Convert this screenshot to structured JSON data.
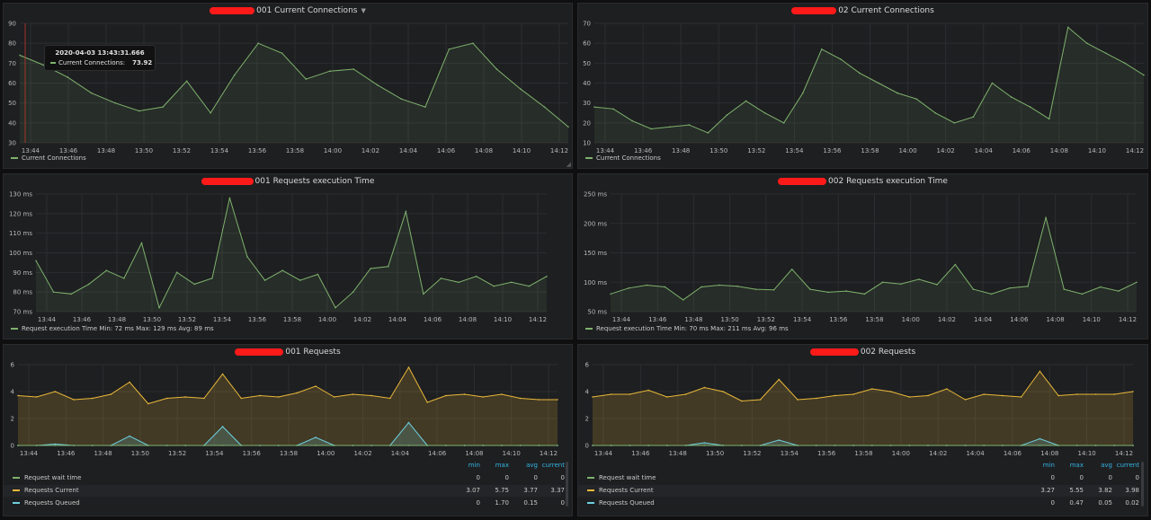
{
  "colors": {
    "green": "#7eb26d",
    "yellow": "#eab839",
    "cyan": "#6ed0e0",
    "grid": "#2c2d30",
    "blue": "#33b5e5"
  },
  "panels": [
    {
      "id": "p1",
      "title": "001 Current Connections",
      "has_caret": true,
      "chart_data": {
        "type": "line",
        "x": [
          "13:43",
          "13:44",
          "13:46",
          "13:48",
          "13:49",
          "13:50",
          "13:51",
          "13:52",
          "13:54",
          "13:55",
          "13:56",
          "13:58",
          "13:59",
          "14:00",
          "14:01",
          "14:02",
          "14:03",
          "14:04",
          "14:05",
          "14:06",
          "14:08",
          "14:10",
          "14:12",
          "14:13"
        ],
        "series": [
          {
            "name": "Current Connections",
            "color": "#7eb26d",
            "values": [
              74,
              69,
              63,
              55,
              50,
              46,
              48,
              61,
              45,
              64,
              80,
              75,
              62,
              66,
              67,
              59,
              52,
              48,
              77,
              80,
              67,
              57,
              48,
              38
            ]
          }
        ],
        "ylim": [
          30,
          90
        ],
        "yticks": [
          "30",
          "40",
          "50",
          "60",
          "70",
          "80",
          "90"
        ],
        "ysuffix": ""
      },
      "xticks": [
        "13:44",
        "13:46",
        "13:48",
        "13:50",
        "13:52",
        "13:54",
        "13:56",
        "13:58",
        "14:00",
        "14:02",
        "14:04",
        "14:06",
        "14:08",
        "14:10",
        "14:12"
      ],
      "legend": [
        {
          "label": "Current Connections",
          "color": "#7eb26d"
        }
      ],
      "tooltip": {
        "time": "2020-04-03 13:43:31.666",
        "label": "Current Connections:",
        "value": "73.92"
      }
    },
    {
      "id": "p2",
      "title": "02 Current Connections",
      "has_caret": false,
      "chart_data": {
        "type": "line",
        "series": [
          {
            "name": "Current Connections",
            "color": "#7eb26d",
            "values": [
              28,
              27,
              21,
              17,
              18,
              19,
              15,
              24,
              31,
              25,
              20,
              35,
              57,
              52,
              45,
              40,
              35,
              32,
              25,
              20,
              23,
              40,
              33,
              28,
              22,
              68,
              60,
              55,
              50,
              44
            ]
          }
        ],
        "ylim": [
          10,
          70
        ],
        "yticks": [
          "10",
          "20",
          "30",
          "40",
          "50",
          "60",
          "70"
        ],
        "ysuffix": ""
      },
      "xticks": [
        "13:44",
        "13:46",
        "13:48",
        "13:50",
        "13:52",
        "13:54",
        "13:56",
        "13:58",
        "14:00",
        "14:02",
        "14:04",
        "14:06",
        "14:08",
        "14:10",
        "14:12"
      ],
      "legend": [
        {
          "label": "Current Connections",
          "color": "#7eb26d"
        }
      ]
    },
    {
      "id": "p3",
      "title": "001 Requests execution Time",
      "has_caret": false,
      "chart_data": {
        "type": "line",
        "series": [
          {
            "name": "Request execution Time",
            "color": "#7eb26d",
            "values": [
              96,
              80,
              79,
              84,
              91,
              87,
              105,
              72,
              90,
              84,
              87,
              128,
              98,
              86,
              91,
              86,
              89,
              72,
              80,
              92,
              93,
              121,
              79,
              87,
              85,
              88,
              83,
              85,
              83,
              88
            ]
          }
        ],
        "ylim": [
          70,
          130
        ],
        "yticks": [
          "70 ms",
          "80 ms",
          "90 ms",
          "100 ms",
          "110 ms",
          "120 ms",
          "130 ms"
        ],
        "ysuffix": " ms"
      },
      "xticks": [
        "13:44",
        "13:46",
        "13:48",
        "13:50",
        "13:52",
        "13:54",
        "13:56",
        "13:58",
        "14:00",
        "14:02",
        "14:04",
        "14:06",
        "14:08",
        "14:10",
        "14:12"
      ],
      "legend": [
        {
          "label": "Request execution Time  Min: 72 ms  Max: 129 ms  Avg: 89 ms",
          "color": "#7eb26d"
        }
      ]
    },
    {
      "id": "p4",
      "title": "002 Requests execution Time",
      "has_caret": false,
      "chart_data": {
        "type": "line",
        "series": [
          {
            "name": "Request execution Time",
            "color": "#7eb26d",
            "values": [
              80,
              90,
              95,
              92,
              70,
              92,
              95,
              93,
              88,
              87,
              122,
              88,
              83,
              85,
              80,
              100,
              97,
              105,
              96,
              130,
              88,
              80,
              90,
              93,
              210,
              88,
              80,
              92,
              85,
              100
            ]
          }
        ],
        "ylim": [
          50,
          250
        ],
        "yticks": [
          "50 ms",
          "100 ms",
          "150 ms",
          "200 ms",
          "250 ms"
        ],
        "ysuffix": " ms"
      },
      "xticks": [
        "13:44",
        "13:46",
        "13:48",
        "13:50",
        "13:52",
        "13:54",
        "13:56",
        "13:58",
        "14:00",
        "14:02",
        "14:04",
        "14:06",
        "14:08",
        "14:10",
        "14:12"
      ],
      "legend": [
        {
          "label": "Request execution Time  Min: 70 ms  Max: 211 ms  Avg: 96 ms",
          "color": "#7eb26d"
        }
      ]
    },
    {
      "id": "p5",
      "title": "001 Requests",
      "has_caret": false,
      "chart_data": {
        "type": "area",
        "series": [
          {
            "name": "Requests Current",
            "color": "#eab839",
            "values": [
              3.7,
              3.6,
              4.0,
              3.4,
              3.5,
              3.8,
              4.7,
              3.1,
              3.5,
              3.6,
              3.5,
              5.3,
              3.5,
              3.7,
              3.6,
              3.9,
              4.4,
              3.6,
              3.8,
              3.7,
              3.5,
              5.8,
              3.2,
              3.7,
              3.8,
              3.6,
              3.8,
              3.5,
              3.4,
              3.4
            ]
          },
          {
            "name": "Requests Queued",
            "color": "#6ed0e0",
            "values": [
              0,
              0,
              0.1,
              0,
              0,
              0,
              0.7,
              0,
              0,
              0,
              0,
              1.4,
              0,
              0,
              0,
              0,
              0.6,
              0,
              0,
              0,
              0,
              1.7,
              0,
              0,
              0,
              0,
              0,
              0,
              0,
              0
            ]
          },
          {
            "name": "Request wait time",
            "color": "#7eb26d",
            "values": [
              0,
              0,
              0,
              0,
              0,
              0,
              0,
              0,
              0,
              0,
              0,
              0,
              0,
              0,
              0,
              0,
              0,
              0,
              0,
              0,
              0,
              0,
              0,
              0,
              0,
              0,
              0,
              0,
              0,
              0
            ]
          }
        ],
        "ylim": [
          0,
          6
        ],
        "yticks": [
          "0",
          "2",
          "4",
          "6"
        ],
        "ysuffix": ""
      },
      "xticks": [
        "13:44",
        "13:46",
        "13:48",
        "13:50",
        "13:52",
        "13:54",
        "13:56",
        "13:58",
        "14:00",
        "14:02",
        "14:04",
        "14:06",
        "14:08",
        "14:10",
        "14:12"
      ],
      "table": {
        "headers": [
          "min",
          "max",
          "avg",
          "current"
        ],
        "rows": [
          {
            "label": "Request wait time",
            "color": "#7eb26d",
            "vals": [
              "0",
              "0",
              "0",
              "0"
            ]
          },
          {
            "label": "Requests Current",
            "color": "#eab839",
            "vals": [
              "3.07",
              "5.75",
              "3.77",
              "3.37"
            ]
          },
          {
            "label": "Requests Queued",
            "color": "#6ed0e0",
            "vals": [
              "0",
              "1.70",
              "0.15",
              "0"
            ]
          }
        ]
      }
    },
    {
      "id": "p6",
      "title": "002 Requests",
      "has_caret": false,
      "chart_data": {
        "type": "area",
        "series": [
          {
            "name": "Requests Current",
            "color": "#eab839",
            "values": [
              3.6,
              3.8,
              3.8,
              4.1,
              3.6,
              3.8,
              4.3,
              4.0,
              3.3,
              3.4,
              4.9,
              3.4,
              3.5,
              3.7,
              3.8,
              4.2,
              4.0,
              3.6,
              3.7,
              4.2,
              3.4,
              3.8,
              3.7,
              3.6,
              5.5,
              3.7,
              3.8,
              3.8,
              3.8,
              4.0
            ]
          },
          {
            "name": "Requests Queued",
            "color": "#6ed0e0",
            "values": [
              0,
              0,
              0,
              0,
              0,
              0,
              0.2,
              0,
              0,
              0,
              0.4,
              0,
              0,
              0,
              0,
              0,
              0,
              0,
              0,
              0,
              0,
              0,
              0,
              0,
              0.5,
              0,
              0,
              0,
              0,
              0
            ]
          },
          {
            "name": "Request wait time",
            "color": "#7eb26d",
            "values": [
              0,
              0,
              0,
              0,
              0,
              0,
              0,
              0,
              0,
              0,
              0,
              0,
              0,
              0,
              0,
              0,
              0,
              0,
              0,
              0,
              0,
              0,
              0,
              0,
              0,
              0,
              0,
              0,
              0,
              0
            ]
          }
        ],
        "ylim": [
          0,
          6
        ],
        "yticks": [
          "0",
          "2",
          "4",
          "6"
        ],
        "ysuffix": ""
      },
      "xticks": [
        "13:44",
        "13:46",
        "13:48",
        "13:50",
        "13:52",
        "13:54",
        "13:56",
        "13:58",
        "14:00",
        "14:02",
        "14:04",
        "14:06",
        "14:08",
        "14:10",
        "14:12"
      ],
      "table": {
        "headers": [
          "min",
          "max",
          "avg",
          "current"
        ],
        "rows": [
          {
            "label": "Request wait time",
            "color": "#7eb26d",
            "vals": [
              "0",
              "0",
              "0",
              "0"
            ]
          },
          {
            "label": "Requests Current",
            "color": "#eab839",
            "vals": [
              "3.27",
              "5.55",
              "3.82",
              "3.98"
            ]
          },
          {
            "label": "Requests Queued",
            "color": "#6ed0e0",
            "vals": [
              "0",
              "0.47",
              "0.05",
              "0.02"
            ]
          }
        ]
      }
    }
  ]
}
